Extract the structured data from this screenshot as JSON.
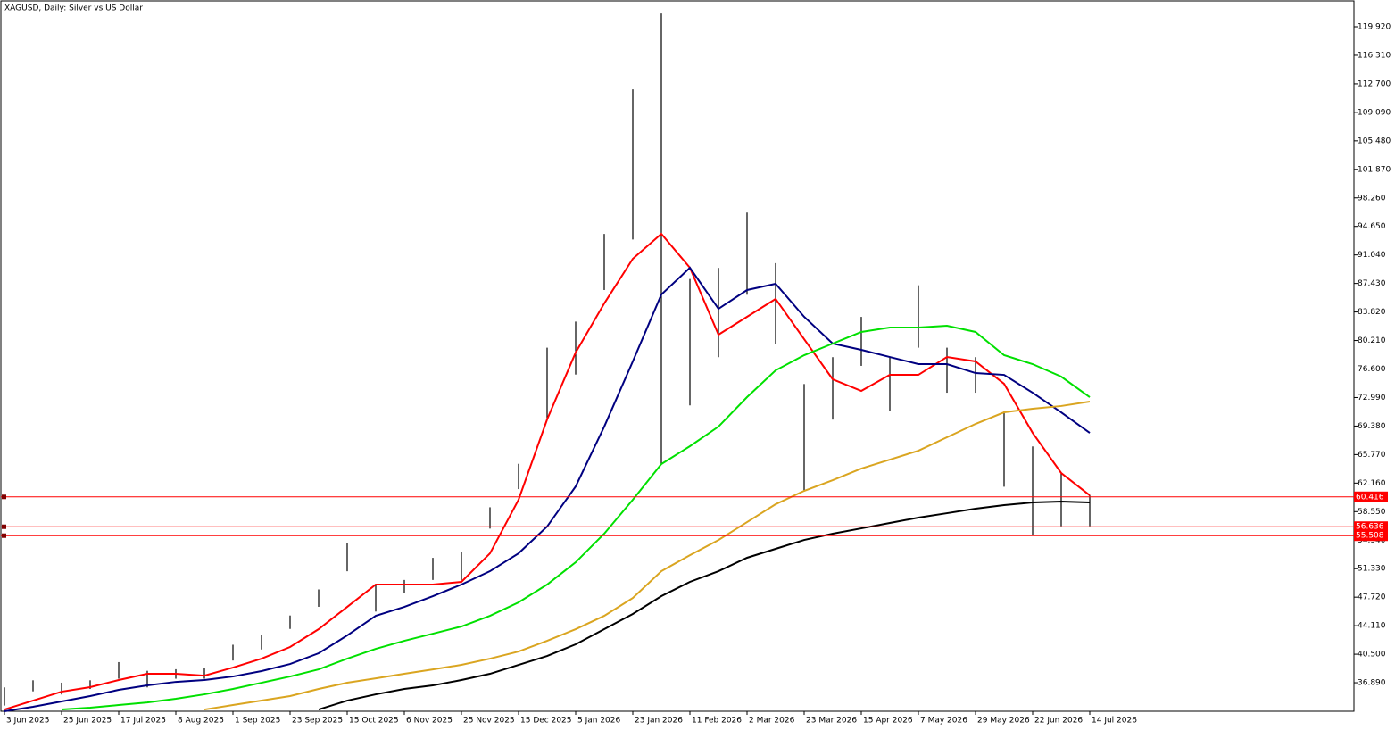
{
  "chart_data": {
    "type": "ohlc",
    "title": "XAGUSD, Daily:  Silver vs US Dollar",
    "x": [
      0,
      8,
      16,
      24,
      32,
      40,
      48,
      56,
      64,
      72,
      80,
      88,
      96,
      104,
      112,
      120,
      128,
      136,
      144,
      152,
      160,
      168,
      176,
      184,
      192,
      200,
      208,
      216,
      224,
      232,
      240,
      248,
      256,
      264,
      272,
      280,
      288,
      296,
      304
    ],
    "high": [
      36.3,
      37.2,
      36.9,
      37.2,
      39.5,
      38.4,
      38.6,
      38.8,
      41.7,
      42.9,
      45.4,
      48.7,
      54.6,
      49.3,
      49.9,
      52.7,
      53.5,
      59.1,
      64.6,
      79.3,
      82.6,
      93.7,
      112.0,
      121.6,
      88.0,
      89.4,
      96.4,
      90.0,
      74.7,
      78.1,
      83.2,
      78.1,
      87.2,
      79.3,
      78.1,
      71.3,
      66.8,
      63.4,
      60.6
    ],
    "low": [
      34.0,
      35.8,
      35.4,
      36.1,
      37.4,
      36.3,
      37.4,
      37.4,
      39.7,
      41.1,
      43.7,
      46.5,
      51.0,
      45.9,
      48.2,
      49.9,
      49.9,
      56.4,
      61.4,
      70.2,
      75.9,
      86.6,
      93.0,
      64.6,
      72.0,
      78.1,
      86.0,
      79.8,
      61.2,
      70.2,
      77.0,
      71.3,
      79.3,
      73.6,
      73.6,
      61.7,
      55.5,
      56.7,
      56.7
    ],
    "bar_color": "#000000",
    "series": [
      {
        "color": "#ff0000",
        "values": [
          33.5,
          34.63,
          35.76,
          36.33,
          37.23,
          38.02,
          38.02,
          37.79,
          38.81,
          39.94,
          41.41,
          43.67,
          46.49,
          49.32,
          49.32,
          49.32,
          49.66,
          53.27,
          60.05,
          70.22,
          78.69,
          84.9,
          90.55,
          93.71,
          89.42,
          80.95,
          83.21,
          85.47,
          80.38,
          75.3,
          73.83,
          75.86,
          75.86,
          78.12,
          77.56,
          74.73,
          68.52,
          63.44,
          60.61
        ]
      },
      {
        "color": "#000080",
        "values": [
          33.28,
          33.84,
          34.52,
          35.2,
          35.99,
          36.55,
          37.0,
          37.23,
          37.68,
          38.36,
          39.26,
          40.62,
          42.88,
          45.36,
          46.49,
          47.85,
          49.32,
          51.01,
          53.27,
          56.66,
          61.74,
          69.31,
          77.56,
          86.03,
          89.42,
          84.22,
          86.6,
          87.39,
          83.21,
          79.82,
          79.03,
          78.12,
          77.22,
          77.22,
          76.09,
          75.86,
          73.6,
          71.12,
          68.52
        ]
      },
      {
        "color": "#00e000",
        "values": [
          null,
          null,
          33.5,
          33.73,
          34.07,
          34.4,
          34.86,
          35.42,
          36.1,
          36.89,
          37.68,
          38.58,
          39.94,
          41.18,
          42.2,
          43.1,
          44.01,
          45.36,
          47.06,
          49.32,
          52.14,
          55.76,
          60.05,
          64.57,
          66.83,
          69.31,
          73.04,
          76.43,
          78.35,
          79.82,
          81.29,
          81.85,
          81.85,
          82.08,
          81.29,
          78.35,
          77.22,
          75.64,
          73.04
        ]
      },
      {
        "color": "#daa520",
        "values": [
          null,
          null,
          null,
          null,
          null,
          null,
          null,
          33.5,
          34.07,
          34.63,
          35.2,
          36.1,
          36.89,
          37.45,
          38.02,
          38.58,
          39.15,
          39.94,
          40.84,
          42.2,
          43.67,
          45.36,
          47.62,
          51.01,
          53.04,
          54.96,
          57.22,
          59.48,
          61.18,
          62.53,
          64.0,
          65.13,
          66.26,
          67.96,
          69.65,
          71.12,
          71.57,
          71.92,
          72.48
        ]
      },
      {
        "color": "#000000",
        "values": [
          null,
          null,
          null,
          null,
          null,
          null,
          null,
          null,
          null,
          null,
          null,
          33.5,
          34.63,
          35.42,
          36.1,
          36.55,
          37.23,
          38.02,
          39.15,
          40.28,
          41.75,
          43.67,
          45.59,
          47.85,
          49.66,
          51.01,
          52.71,
          53.84,
          54.96,
          55.76,
          56.43,
          57.11,
          57.79,
          58.35,
          58.92,
          59.37,
          59.71,
          59.82,
          59.71
        ]
      }
    ],
    "hlines": [
      60.416,
      56.636,
      55.508
    ],
    "hline_color": "#ff0000",
    "xlim": [
      -1,
      378
    ],
    "xticks": [
      {
        "value": 0,
        "label": "3 Jun 2025"
      },
      {
        "value": 16,
        "label": "25 Jun 2025"
      },
      {
        "value": 32,
        "label": "17 Jul 2025"
      },
      {
        "value": 48,
        "label": "8 Aug 2025"
      },
      {
        "value": 64,
        "label": "1 Sep 2025"
      },
      {
        "value": 80,
        "label": "23 Sep 2025"
      },
      {
        "value": 96,
        "label": "15 Oct 2025"
      },
      {
        "value": 112,
        "label": "6 Nov 2025"
      },
      {
        "value": 128,
        "label": "25 Nov 2025"
      },
      {
        "value": 144,
        "label": "15 Dec 2025"
      },
      {
        "value": 160,
        "label": "5 Jan 2026"
      },
      {
        "value": 176,
        "label": "23 Jan 2026"
      },
      {
        "value": 192,
        "label": "11 Feb 2026"
      },
      {
        "value": 208,
        "label": "2 Mar 2026"
      },
      {
        "value": 224,
        "label": "23 Mar 2026"
      },
      {
        "value": 240,
        "label": "15 Apr 2026"
      },
      {
        "value": 256,
        "label": "7 May 2026"
      },
      {
        "value": 272,
        "label": "29 May 2026"
      },
      {
        "value": 288,
        "label": "22 Jun 2026"
      },
      {
        "value": 304,
        "label": "14 Jul 2026"
      }
    ],
    "ylim": [
      33.28,
      123.31
    ],
    "yticks": [
      {
        "value": 36.89,
        "label": "36.890"
      },
      {
        "value": 40.5,
        "label": "40.500"
      },
      {
        "value": 44.11,
        "label": "44.110"
      },
      {
        "value": 47.72,
        "label": "47.720"
      },
      {
        "value": 51.33,
        "label": "51.330"
      },
      {
        "value": 54.94,
        "label": "54.940"
      },
      {
        "value": 58.55,
        "label": "58.550"
      },
      {
        "value": 62.16,
        "label": "62.160"
      },
      {
        "value": 65.77,
        "label": "65.770"
      },
      {
        "value": 69.38,
        "label": "69.380"
      },
      {
        "value": 72.99,
        "label": "72.990"
      },
      {
        "value": 76.6,
        "label": "76.600"
      },
      {
        "value": 80.21,
        "label": "80.210"
      },
      {
        "value": 83.82,
        "label": "83.820"
      },
      {
        "value": 87.43,
        "label": "87.430"
      },
      {
        "value": 91.04,
        "label": "91.040"
      },
      {
        "value": 94.65,
        "label": "94.650"
      },
      {
        "value": 98.26,
        "label": "98.260"
      },
      {
        "value": 101.87,
        "label": "101.870"
      },
      {
        "value": 105.48,
        "label": "105.480"
      },
      {
        "value": 109.09,
        "label": "109.090"
      },
      {
        "value": 112.7,
        "label": "112.700"
      },
      {
        "value": 116.31,
        "label": "116.310"
      },
      {
        "value": 119.92,
        "label": "119.920"
      }
    ]
  }
}
